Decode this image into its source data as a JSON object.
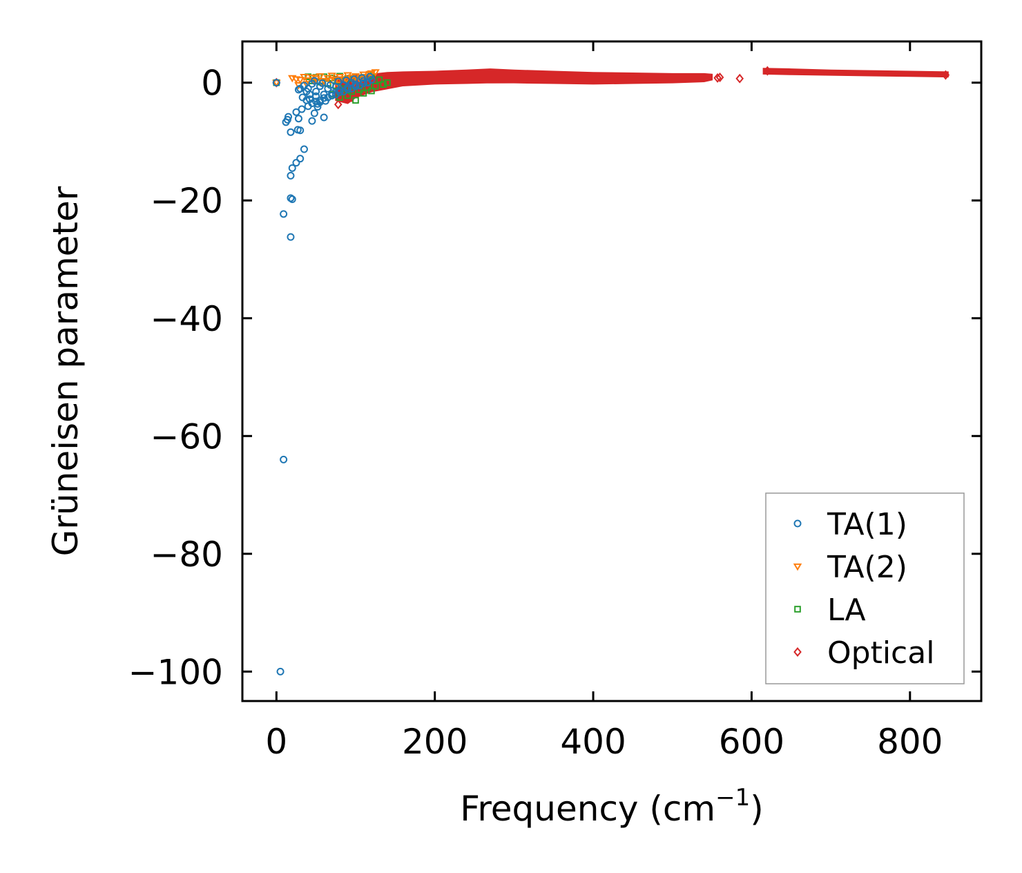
{
  "chart_data": {
    "type": "scatter",
    "title": "",
    "xlabel": "Frequency (cm",
    "xlabel_sup": "−1",
    "xlabel_close": ")",
    "ylabel": "Grüneisen parameter",
    "xlim": [
      -43,
      890
    ],
    "ylim": [
      -105,
      7
    ],
    "xticks": [
      0,
      200,
      400,
      600,
      800
    ],
    "xtick_labels": [
      "0",
      "200",
      "400",
      "600",
      "800"
    ],
    "yticks": [
      0,
      -20,
      -40,
      -60,
      -80,
      -100
    ],
    "ytick_labels": [
      "0",
      "−20",
      "−40",
      "−60",
      "−80",
      "−100"
    ],
    "legend_placement": "lower-right",
    "series": [
      {
        "name": "TA(1)",
        "marker": "circle",
        "color": "#1f77b4",
        "x": [
          5,
          9,
          9,
          18,
          18,
          20,
          18,
          14,
          12,
          20,
          25,
          27,
          30,
          30,
          35,
          15,
          18,
          25,
          28,
          32,
          40,
          45,
          48,
          52,
          55,
          60,
          38,
          42,
          50,
          30,
          35,
          0,
          28,
          33,
          38,
          45,
          55,
          65,
          75,
          85,
          95,
          105,
          115,
          40,
          50,
          60,
          70,
          80,
          90,
          100,
          110,
          45,
          55,
          65,
          75,
          85,
          95,
          50,
          60,
          70,
          80,
          90,
          100,
          110,
          120,
          48,
          58,
          68,
          78,
          88,
          98,
          108,
          118,
          42,
          52,
          62
        ],
        "y": [
          -100,
          -64,
          -22.3,
          -26.2,
          -19.6,
          -19.8,
          -15.8,
          -6.3,
          -6.7,
          -14.5,
          -13.6,
          -8.0,
          -12.9,
          -8.1,
          -11.3,
          -5.8,
          -8.4,
          -5.0,
          -6.1,
          -4.5,
          -4.0,
          -6.5,
          -5.2,
          -4.1,
          -3.3,
          -5.9,
          -1.5,
          -2.0,
          -2.3,
          -1.0,
          -0.5,
          0.0,
          -1.2,
          -2.5,
          -3.0,
          -3.5,
          -3.0,
          -2.5,
          -2.0,
          -1.5,
          -1.0,
          -0.5,
          0.0,
          -1.0,
          -1.5,
          -2.0,
          -1.8,
          -1.2,
          -0.8,
          -0.3,
          0.3,
          -0.2,
          -0.6,
          -1.0,
          -0.7,
          -0.4,
          0.0,
          -3.2,
          -2.6,
          -2.2,
          -1.6,
          -1.1,
          -0.6,
          -0.1,
          0.5,
          0.3,
          -0.1,
          -0.4,
          0.2,
          0.4,
          0.6,
          0.8,
          1.0,
          -2.8,
          -3.6,
          -3.1
        ]
      },
      {
        "name": "TA(2)",
        "marker": "triangle-down",
        "color": "#ff7f0e",
        "x": [
          0,
          20,
          25,
          30,
          35,
          40,
          45,
          50,
          55,
          60,
          65,
          70,
          75,
          80,
          85,
          90,
          95,
          100,
          105,
          110,
          115,
          120,
          125,
          28,
          38,
          48,
          58,
          68,
          78,
          88,
          98,
          108,
          118
        ],
        "y": [
          0.0,
          0.8,
          0.6,
          0.5,
          1.0,
          0.4,
          0.9,
          0.7,
          1.1,
          0.3,
          0.8,
          1.2,
          0.5,
          1.0,
          0.6,
          1.3,
          0.9,
          1.1,
          0.7,
          1.4,
          1.0,
          1.6,
          1.8,
          -0.4,
          -0.2,
          0.2,
          0.0,
          0.4,
          -0.3,
          0.6,
          0.1,
          0.8,
          1.5
        ]
      },
      {
        "name": "LA",
        "marker": "square",
        "color": "#2ca02c",
        "x": [
          0,
          40,
          50,
          60,
          70,
          80,
          90,
          100,
          110,
          120,
          130,
          140,
          45,
          55,
          65,
          75,
          85,
          95,
          105,
          115,
          125,
          135,
          70,
          80,
          90,
          100,
          110,
          120
        ],
        "y": [
          0.0,
          1.0,
          0.9,
          1.0,
          0.8,
          1.1,
          0.7,
          1.0,
          0.9,
          1.2,
          0.5,
          0.0,
          0.3,
          0.1,
          -0.2,
          -0.5,
          -1.0,
          -1.5,
          -1.2,
          -0.8,
          -0.6,
          -0.3,
          -2.0,
          -2.5,
          -2.2,
          -3.0,
          -1.8,
          -1.4
        ]
      },
      {
        "name": "Optical",
        "marker": "diamond",
        "color": "#d62728",
        "band": {
          "x": [
            75,
            90,
            100,
            120,
            140,
            160,
            200,
            240,
            270,
            300,
            350,
            400,
            450,
            500,
            540,
            550
          ],
          "y_upper": [
            1.0,
            0.8,
            1.2,
            1.4,
            1.7,
            1.8,
            1.9,
            2.1,
            2.3,
            2.1,
            1.9,
            1.7,
            1.6,
            1.5,
            1.5,
            1.4
          ],
          "y_lower": [
            -3.0,
            -3.5,
            -2.5,
            -1.5,
            -1.0,
            -0.5,
            -0.2,
            -0.1,
            0.0,
            0.0,
            -0.1,
            -0.2,
            -0.1,
            0.0,
            0.2,
            0.5
          ]
        },
        "band2": {
          "x": [
            615,
            650,
            700,
            750,
            800,
            848
          ],
          "y_upper": [
            2.4,
            2.3,
            2.1,
            2.0,
            1.9,
            1.8
          ],
          "y_lower": [
            1.5,
            1.4,
            1.3,
            1.2,
            1.1,
            1.0
          ]
        },
        "x": [
          0,
          78,
          95,
          557,
          560,
          585,
          620,
          845
        ],
        "y": [
          0.0,
          -3.7,
          -2.5,
          0.8,
          0.9,
          0.7,
          2.0,
          1.3
        ]
      }
    ]
  }
}
